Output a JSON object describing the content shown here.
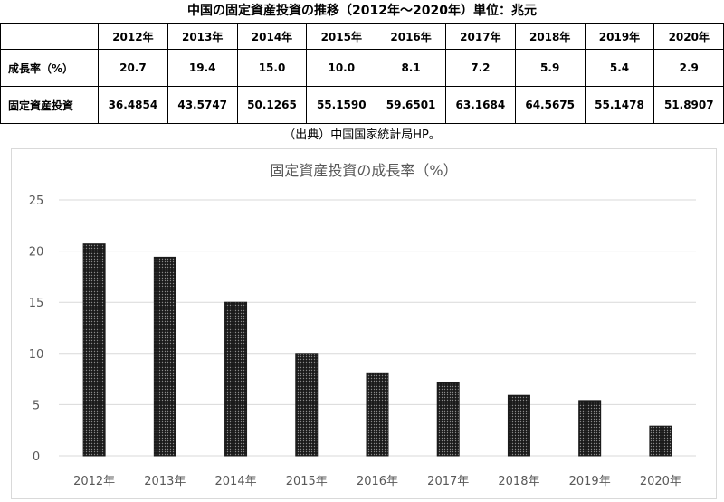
{
  "page_title": "中国の固定資産投資の推移（2012年～2020年）単位：兆元",
  "table": {
    "corner": "",
    "years": [
      "2012年",
      "2013年",
      "2014年",
      "2015年",
      "2016年",
      "2017年",
      "2018年",
      "2019年",
      "2020年"
    ],
    "rows": [
      {
        "label": "成長率（%）",
        "values": [
          "20.7",
          "19.4",
          "15.0",
          "10.0",
          "8.1",
          "7.2",
          "5.9",
          "5.4",
          "2.9"
        ]
      },
      {
        "label": "固定資産投資",
        "values": [
          "36.4854",
          "43.5747",
          "50.1265",
          "55.1590",
          "59.6501",
          "63.1684",
          "64.5675",
          "55.1478",
          "51.8907"
        ]
      }
    ]
  },
  "source_note": "（出典）中国国家統計局HP。",
  "chart_data": {
    "type": "bar",
    "title": "固定資産投資の成長率（%）",
    "categories": [
      "2012年",
      "2013年",
      "2014年",
      "2015年",
      "2016年",
      "2017年",
      "2018年",
      "2019年",
      "2020年"
    ],
    "values": [
      20.7,
      19.4,
      15.0,
      10.0,
      8.1,
      7.2,
      5.9,
      5.4,
      2.9
    ],
    "ylim": [
      0,
      25
    ],
    "yticks": [
      0,
      5,
      10,
      15,
      20,
      25
    ],
    "xlabel": "",
    "ylabel": "",
    "grid": true,
    "legend": "none",
    "bar_color": "#1a1a1a",
    "bar_pattern": "dotted"
  }
}
